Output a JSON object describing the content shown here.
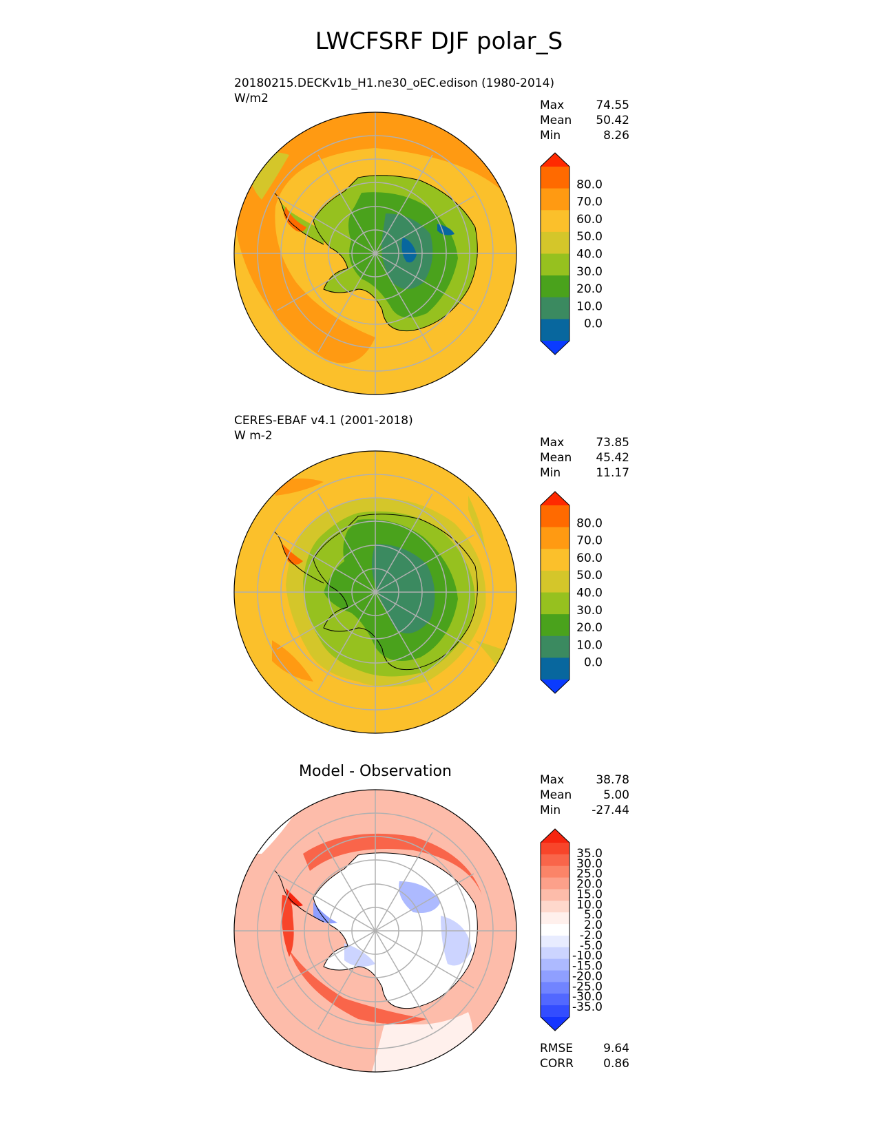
{
  "figure_title": "LWCFSRF DJF polar_S",
  "panels": [
    {
      "subtitle_line1": "20180215.DECKv1b_H1.ne30_oEC.edison (1980-2014)",
      "subtitle_line2": "W/m2",
      "center_title": "",
      "stats": [
        {
          "label": "Max",
          "value": "74.55"
        },
        {
          "label": "Mean",
          "value": "50.42"
        },
        {
          "label": "Min",
          "value": "8.26"
        }
      ],
      "colorbar_levels": [
        "80.0",
        "70.0",
        "60.0",
        "50.0",
        "40.0",
        "30.0",
        "20.0",
        "10.0",
        "0.0"
      ],
      "colorbar_colors": [
        "#ff2a00",
        "#ff6a00",
        "#ff9a12",
        "#fbc02b",
        "#d4c62a",
        "#96c11f",
        "#4aa21c",
        "#3b8a60",
        "#08679e",
        "#0a3bff"
      ]
    },
    {
      "subtitle_line1": "CERES-EBAF v4.1 (2001-2018)",
      "subtitle_line2": "W m-2",
      "center_title": "",
      "stats": [
        {
          "label": "Max",
          "value": "73.85"
        },
        {
          "label": "Mean",
          "value": "45.42"
        },
        {
          "label": "Min",
          "value": "11.17"
        }
      ],
      "colorbar_levels": [
        "80.0",
        "70.0",
        "60.0",
        "50.0",
        "40.0",
        "30.0",
        "20.0",
        "10.0",
        "0.0"
      ],
      "colorbar_colors": [
        "#ff2a00",
        "#ff6a00",
        "#ff9a12",
        "#fbc02b",
        "#d4c62a",
        "#96c11f",
        "#4aa21c",
        "#3b8a60",
        "#08679e",
        "#0a3bff"
      ]
    },
    {
      "subtitle_line1": "",
      "subtitle_line2": "",
      "center_title": "Model - Observation",
      "stats": [
        {
          "label": "Max",
          "value": "38.78"
        },
        {
          "label": "Mean",
          "value": "5.00"
        },
        {
          "label": "Min",
          "value": "-27.44"
        }
      ],
      "extra_stats": [
        {
          "label": "RMSE",
          "value": "9.64"
        },
        {
          "label": "CORR",
          "value": "0.86"
        }
      ],
      "colorbar_levels": [
        "35.0",
        "30.0",
        "25.0",
        "20.0",
        "15.0",
        "10.0",
        "5.0",
        "2.0",
        "-2.0",
        "-5.0",
        "-10.0",
        "-15.0",
        "-20.0",
        "-25.0",
        "-30.0",
        "-35.0"
      ],
      "colorbar_colors": [
        "#f6250f",
        "#f8452a",
        "#f9654a",
        "#fb8468",
        "#fca08a",
        "#fdbcaa",
        "#fed8cc",
        "#fff0ec",
        "#ffffff",
        "#e8ecff",
        "#ccd4ff",
        "#adbaff",
        "#8f9fff",
        "#7184ff",
        "#5268ff",
        "#334dff",
        "#1535ff"
      ]
    }
  ],
  "chart_data": [
    {
      "type": "heatmap",
      "title": "20180215.DECKv1b_H1.ne30_oEC.edison (1980-2014)",
      "units": "W/m2",
      "projection": "south polar stereographic",
      "summary": {
        "max": 74.55,
        "mean": 50.42,
        "min": 8.26
      },
      "levels": [
        0,
        10,
        20,
        30,
        40,
        50,
        60,
        70,
        80
      ]
    },
    {
      "type": "heatmap",
      "title": "CERES-EBAF v4.1 (2001-2018)",
      "units": "W m-2",
      "projection": "south polar stereographic",
      "summary": {
        "max": 73.85,
        "mean": 45.42,
        "min": 11.17
      },
      "levels": [
        0,
        10,
        20,
        30,
        40,
        50,
        60,
        70,
        80
      ]
    },
    {
      "type": "heatmap",
      "title": "Model - Observation",
      "projection": "south polar stereographic",
      "summary": {
        "max": 38.78,
        "mean": 5.0,
        "min": -27.44,
        "rmse": 9.64,
        "corr": 0.86
      },
      "levels": [
        -35,
        -30,
        -25,
        -20,
        -15,
        -10,
        -5,
        -2,
        2,
        5,
        10,
        15,
        20,
        25,
        30,
        35
      ]
    }
  ]
}
